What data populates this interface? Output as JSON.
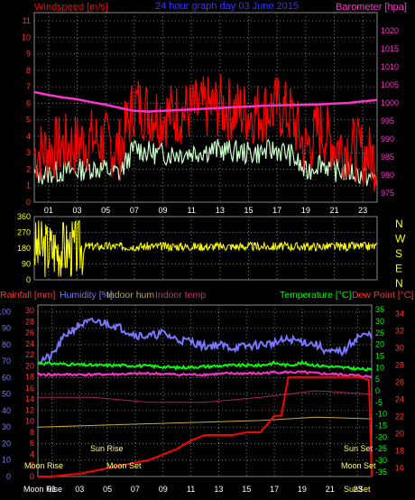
{
  "header": {
    "windspeed_label": "Windspeed [m/s]",
    "graph_title": "24 hour graph day  03 June 2015",
    "barometer_label": "Barometer [hpa]"
  },
  "top_x_ticks": [
    "01",
    "03",
    "05",
    "07",
    "09",
    "11",
    "13",
    "15",
    "17",
    "19",
    "21",
    "23"
  ],
  "bottom_x_ticks": [
    "01",
    "03",
    "05",
    "07",
    "09",
    "11",
    "13",
    "15",
    "17",
    "19",
    "21",
    "23"
  ],
  "colors": {
    "wind": "#ff0000",
    "gust": "#ccffcc",
    "baro": "#ff33cc",
    "dir": "#ffff00",
    "hum": "#7777ff",
    "temp": "#00ff00",
    "dew": "#ff3333",
    "indoor_hum": "#ccaa33",
    "indoor_temp": "#aa2255",
    "rain": "#ff0000",
    "grid": "#777777"
  },
  "chart_data": [
    {
      "type": "line",
      "title": "24 hour graph day  03 June 2015",
      "series": [
        {
          "name": "Windspeed [m/s]",
          "x": [
            0,
            1,
            2,
            3,
            4,
            5,
            6,
            7,
            8,
            9,
            10,
            11,
            12,
            13,
            14,
            15,
            16,
            17,
            18,
            19,
            20,
            21,
            22,
            23,
            24
          ],
          "values": [
            3,
            3.2,
            3.4,
            3.5,
            3.8,
            3.6,
            3.2,
            6,
            5.5,
            5.3,
            5.4,
            5.5,
            5.7,
            5.8,
            5.6,
            5.4,
            5.5,
            5.8,
            5.2,
            3.2,
            4.5,
            3.5,
            3.4,
            3,
            2.5
          ]
        },
        {
          "name": "Barometer [hpa]",
          "x": [
            0,
            1,
            2,
            3,
            4,
            5,
            6,
            7,
            8,
            9,
            10,
            11,
            12,
            13,
            14,
            15,
            16,
            17,
            18,
            19,
            20,
            21,
            22,
            23,
            24
          ],
          "values": [
            1003,
            1002.2,
            1001.5,
            1001,
            1000.2,
            999.5,
            998.6,
            997.8,
            997.6,
            997.8,
            998,
            998.2,
            998.4,
            998.6,
            998.8,
            999,
            999.2,
            999.3,
            999.4,
            999.5,
            999.6,
            999.8,
            1000,
            1000.4,
            1000.8
          ]
        }
      ],
      "yleft_ticks": [
        "0",
        "1",
        "2",
        "3",
        "4",
        "5",
        "6",
        "7",
        "8",
        "9",
        "10",
        "11"
      ],
      "yright_ticks": [
        "975",
        "980",
        "985",
        "990",
        "995",
        "1000",
        "1005",
        "1010",
        "1015",
        "1020"
      ],
      "ylim_left": [
        0,
        11.5
      ],
      "ylim_right": [
        972.5,
        1025
      ]
    },
    {
      "type": "line",
      "series": [
        {
          "name": "Wind direction",
          "x": [
            0,
            2,
            4,
            5,
            6,
            8,
            10,
            12,
            14,
            16,
            17,
            18,
            20,
            22,
            24
          ],
          "values": [
            200,
            200,
            190,
            200,
            200,
            190,
            195,
            190,
            190,
            190,
            200,
            180,
            190,
            190,
            190
          ]
        }
      ],
      "yleft_ticks": [
        "0",
        "90",
        "180",
        "270",
        "360"
      ],
      "yright_ticks": [
        "N",
        "W",
        "S",
        "E",
        "N"
      ],
      "ylim": [
        0,
        360
      ]
    },
    {
      "type": "line",
      "series": [
        {
          "name": "Humidity [%]",
          "x": [
            0,
            1,
            2,
            3,
            4,
            5,
            6,
            7,
            8,
            9,
            10,
            11,
            12,
            13,
            14,
            15,
            16,
            17,
            18,
            19,
            20,
            21,
            22,
            23,
            24
          ],
          "values": [
            70,
            73,
            86,
            92,
            94,
            93,
            90,
            86,
            85,
            87,
            83,
            82,
            79,
            80,
            78,
            79,
            80,
            81,
            83,
            82,
            80,
            75,
            76,
            85,
            86
          ]
        },
        {
          "name": "Temperature [°C]",
          "x": [
            0,
            2,
            4,
            6,
            8,
            10,
            12,
            14,
            16,
            17,
            18,
            19,
            20,
            22,
            24
          ],
          "values": [
            12,
            11.5,
            11,
            11,
            10.7,
            10,
            10.5,
            11,
            11,
            12,
            11,
            12,
            11,
            10,
            9
          ]
        },
        {
          "name": "Dew Point [°C]",
          "x": [
            0,
            2,
            4,
            6,
            8,
            10,
            12,
            14,
            16,
            17,
            18,
            19,
            20,
            22,
            24
          ],
          "values": [
            7,
            7,
            7,
            7.2,
            7.5,
            7,
            7,
            7.5,
            7.5,
            8,
            8,
            8,
            7.5,
            7,
            6
          ]
        },
        {
          "name": "Indoor hum",
          "x": [
            0,
            4,
            8,
            12,
            16,
            20,
            24
          ],
          "values": [
            30,
            31,
            32,
            33,
            34,
            36,
            35
          ]
        },
        {
          "name": "Indoor temp",
          "x": [
            0,
            4,
            8,
            12,
            16,
            20,
            24
          ],
          "values": [
            48,
            48,
            45,
            45,
            48,
            52,
            50
          ]
        },
        {
          "name": "Rainfall [mm]",
          "x": [
            0,
            1,
            2,
            3,
            4,
            5,
            6,
            7,
            8,
            9,
            10,
            11,
            12,
            13,
            14,
            15,
            16,
            17,
            17.5,
            18,
            19,
            20,
            21,
            22,
            23,
            23.8,
            24
          ],
          "values": [
            0,
            0,
            0.3,
            0.5,
            1,
            1.5,
            2,
            2.5,
            3,
            4,
            5,
            6.5,
            7.5,
            7.5,
            7.5,
            8,
            8,
            11,
            11,
            18,
            18,
            18,
            18,
            18,
            18,
            17.5,
            0
          ]
        }
      ],
      "yleft1_ticks": [
        "0",
        "10",
        "20",
        "30",
        "40",
        "50",
        "60",
        "70",
        "80",
        "90",
        "100"
      ],
      "yleft2_ticks": [
        "0",
        "2",
        "4",
        "6",
        "8",
        "10",
        "12",
        "14",
        "16",
        "18",
        "20",
        "22",
        "24",
        "26",
        "28",
        "30"
      ],
      "yright1_ticks": [
        "-35",
        "-30",
        "-25",
        "-20",
        "-15",
        "-10",
        "-5",
        "0",
        "5",
        "10",
        "15",
        "20",
        "25",
        "30",
        "35"
      ],
      "yright2_ticks": [
        "16",
        "18",
        "20",
        "22",
        "24",
        "26",
        "28",
        "30",
        "32",
        "34"
      ],
      "legend": {
        "rainfall": "Rainfall [mm]",
        "humidity": "Humidity [%]",
        "indoor_hum": "Indoor hum",
        "indoor_temp": "Indoor temp",
        "temperature": "Temperature [°C]",
        "dew_point": "Dew Point [°C]"
      },
      "annotations": {
        "moon_rise_left": "Moon Rise",
        "moon_rise_bottom": "Moon Rise",
        "sun_rise": "Sun Rise",
        "moon_set": "Moon Set",
        "sun_set": "Sun Set",
        "moon_set_right": "Moon Set",
        "sun_set_bottom": "SunSet"
      }
    }
  ]
}
